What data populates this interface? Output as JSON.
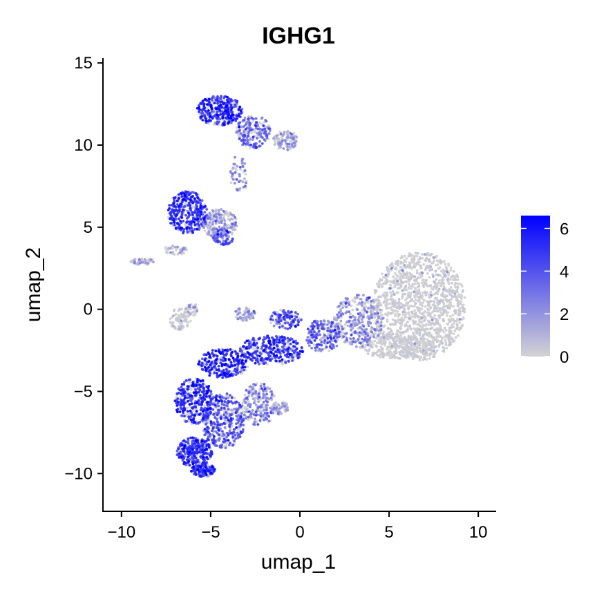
{
  "chart_data": {
    "type": "scatter",
    "title": "IGHG1",
    "xlabel": "umap_1",
    "ylabel": "umap_2",
    "xlim": [
      -11,
      11
    ],
    "ylim": [
      -12.3,
      15.3
    ],
    "xticks": [
      -10,
      -5,
      0,
      5,
      10
    ],
    "xtick_labels": [
      "−10",
      "−5",
      "0",
      "5",
      "10"
    ],
    "yticks": [
      -10,
      -5,
      0,
      5,
      10,
      15
    ],
    "ytick_labels": [
      "−10",
      "−5",
      "0",
      "5",
      "10",
      "15"
    ],
    "grid": false,
    "legend": "right",
    "color_scale": {
      "low_color": "#d3d3d3",
      "high_color": "#0000ff",
      "min": 0,
      "max": 6.6,
      "ticks": [
        0,
        2,
        4,
        6
      ],
      "tick_labels": [
        "0",
        "2",
        "4",
        "6"
      ]
    },
    "clusters": [
      {
        "center": [
          -4.5,
          12.1
        ],
        "radius": [
          1.3,
          0.9
        ],
        "n": 350,
        "expr": 4.8
      },
      {
        "center": [
          -2.6,
          10.8
        ],
        "radius": [
          1.0,
          1.0
        ],
        "n": 200,
        "expr": 3.0
      },
      {
        "center": [
          -0.8,
          10.3
        ],
        "radius": [
          0.7,
          0.6
        ],
        "n": 110,
        "expr": 1.2
      },
      {
        "center": [
          -3.4,
          8.2
        ],
        "radius": [
          0.5,
          1.2
        ],
        "n": 60,
        "expr": 2.0
      },
      {
        "center": [
          -6.3,
          5.9
        ],
        "radius": [
          1.1,
          1.3
        ],
        "n": 380,
        "expr": 4.8
      },
      {
        "center": [
          -4.5,
          5.2
        ],
        "radius": [
          1.0,
          0.9
        ],
        "n": 220,
        "expr": 1.5
      },
      {
        "center": [
          -4.3,
          4.4
        ],
        "radius": [
          0.6,
          0.5
        ],
        "n": 80,
        "expr": 3.5
      },
      {
        "center": [
          -8.8,
          2.9
        ],
        "radius": [
          0.7,
          0.2
        ],
        "n": 60,
        "expr": 0.6
      },
      {
        "center": [
          -7.0,
          3.6
        ],
        "radius": [
          0.7,
          0.3
        ],
        "n": 40,
        "expr": 0.8
      },
      {
        "center": [
          -6.7,
          -0.6
        ],
        "radius": [
          0.6,
          0.7
        ],
        "n": 90,
        "expr": 0.4
      },
      {
        "center": [
          -6.1,
          0.0
        ],
        "radius": [
          0.4,
          0.4
        ],
        "n": 40,
        "expr": 0.5
      },
      {
        "center": [
          -3.1,
          -0.3
        ],
        "radius": [
          0.6,
          0.4
        ],
        "n": 70,
        "expr": 1.2
      },
      {
        "center": [
          -0.8,
          -0.6
        ],
        "radius": [
          0.9,
          0.6
        ],
        "n": 110,
        "expr": 3.8
      },
      {
        "center": [
          -1.6,
          -2.5
        ],
        "radius": [
          1.8,
          0.9
        ],
        "n": 360,
        "expr": 4.6
      },
      {
        "center": [
          -4.3,
          -3.3
        ],
        "radius": [
          1.4,
          0.9
        ],
        "n": 280,
        "expr": 5.2
      },
      {
        "center": [
          -5.9,
          -5.6
        ],
        "radius": [
          1.1,
          1.4
        ],
        "n": 360,
        "expr": 5.0
      },
      {
        "center": [
          -4.3,
          -6.8
        ],
        "radius": [
          1.2,
          1.7
        ],
        "n": 420,
        "expr": 3.5
      },
      {
        "center": [
          -5.9,
          -8.7
        ],
        "radius": [
          1.0,
          0.9
        ],
        "n": 320,
        "expr": 4.6
      },
      {
        "center": [
          -5.4,
          -9.8
        ],
        "radius": [
          0.7,
          0.4
        ],
        "n": 140,
        "expr": 4.8
      },
      {
        "center": [
          -2.3,
          -5.8
        ],
        "radius": [
          1.0,
          1.3
        ],
        "n": 220,
        "expr": 2.2
      },
      {
        "center": [
          -1.1,
          -6.0
        ],
        "radius": [
          0.5,
          0.4
        ],
        "n": 60,
        "expr": 0.8
      },
      {
        "center": [
          1.3,
          -1.6
        ],
        "radius": [
          1.0,
          1.0
        ],
        "n": 200,
        "expr": 3.2
      },
      {
        "center": [
          3.3,
          -0.7
        ],
        "radius": [
          1.4,
          1.6
        ],
        "n": 340,
        "expr": 1.8
      },
      {
        "center": [
          6.7,
          0.2
        ],
        "radius": [
          2.6,
          3.3
        ],
        "n": 1300,
        "expr": 0.25
      },
      {
        "center": [
          5.5,
          -2.3
        ],
        "radius": [
          2.2,
          0.7
        ],
        "n": 300,
        "expr": 0.2
      }
    ]
  }
}
